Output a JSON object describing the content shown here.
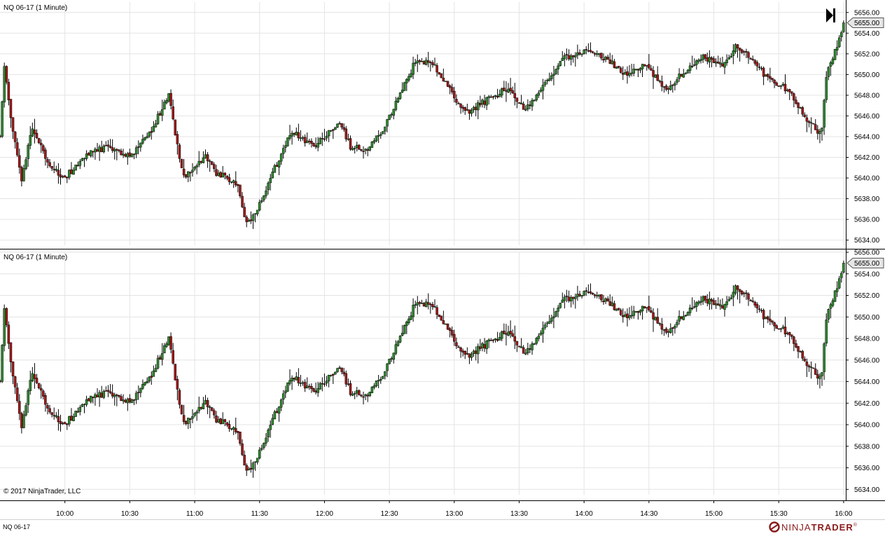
{
  "instrument_tab": "NQ 06-17",
  "copyright": "© 2017 NinjaTrader, LLC",
  "brand": {
    "logo_text_light": "NINJA",
    "logo_text_bold": "TRADER",
    "logo_mark": "®",
    "logo_color": "#8a1c1c"
  },
  "colors": {
    "up": "#2e8b2e",
    "down": "#a01818",
    "wick": "#000000",
    "grid": "#e4e4e4",
    "price_marker_fill": "#e6e6e6"
  },
  "chart_data": [
    {
      "type": "candlestick",
      "title": "NQ 06-17 (1 Minute)",
      "symbol": "NQ 06-17",
      "interval": "1 Minute",
      "x_ticks": [
        "10:00",
        "10:30",
        "11:00",
        "11:30",
        "12:00",
        "12:30",
        "13:00",
        "13:30",
        "14:00",
        "14:30",
        "15:00",
        "15:30",
        "16:00"
      ],
      "x_range": [
        "09:30",
        "16:01"
      ],
      "y_ticks": [
        "5634.00",
        "5636.00",
        "5638.00",
        "5640.00",
        "5642.00",
        "5644.00",
        "5646.00",
        "5648.00",
        "5650.00",
        "5652.00",
        "5654.00",
        "5656.00"
      ],
      "ylim": [
        5633.5,
        5657.0
      ],
      "last_price": "5655.00",
      "last_price_value": 5655.0,
      "grid": true,
      "end_of_chart_marker": true,
      "close_path": [
        [
          "09:30",
          5644.0
        ],
        [
          "09:32",
          5650.5
        ],
        [
          "09:35",
          5646.0
        ],
        [
          "09:40",
          5639.8
        ],
        [
          "09:45",
          5645.0
        ],
        [
          "09:52",
          5641.5
        ],
        [
          "10:00",
          5640.0
        ],
        [
          "10:10",
          5642.3
        ],
        [
          "10:20",
          5643.0
        ],
        [
          "10:30",
          5642.0
        ],
        [
          "10:40",
          5644.5
        ],
        [
          "10:48",
          5648.2
        ],
        [
          "10:52",
          5643.0
        ],
        [
          "10:55",
          5640.0
        ],
        [
          "11:05",
          5642.0
        ],
        [
          "11:10",
          5640.5
        ],
        [
          "11:20",
          5639.5
        ],
        [
          "11:24",
          5635.5
        ],
        [
          "11:28",
          5636.5
        ],
        [
          "11:35",
          5640.0
        ],
        [
          "11:45",
          5644.5
        ],
        [
          "11:55",
          5643.0
        ],
        [
          "12:07",
          5645.5
        ],
        [
          "12:12",
          5643.0
        ],
        [
          "12:20",
          5642.8
        ],
        [
          "12:28",
          5645.0
        ],
        [
          "12:35",
          5648.0
        ],
        [
          "12:42",
          5651.3
        ],
        [
          "12:50",
          5651.0
        ],
        [
          "12:55",
          5649.5
        ],
        [
          "13:05",
          5646.3
        ],
        [
          "13:15",
          5647.5
        ],
        [
          "13:25",
          5648.7
        ],
        [
          "13:33",
          5646.5
        ],
        [
          "13:40",
          5648.5
        ],
        [
          "13:50",
          5651.5
        ],
        [
          "14:02",
          5652.5
        ],
        [
          "14:10",
          5651.5
        ],
        [
          "14:20",
          5650.0
        ],
        [
          "14:28",
          5651.0
        ],
        [
          "14:38",
          5648.5
        ],
        [
          "14:45",
          5650.0
        ],
        [
          "14:55",
          5651.6
        ],
        [
          "15:05",
          5651.0
        ],
        [
          "15:10",
          5652.7
        ],
        [
          "15:18",
          5651.5
        ],
        [
          "15:25",
          5649.5
        ],
        [
          "15:35",
          5648.5
        ],
        [
          "15:42",
          5646.0
        ],
        [
          "15:48",
          5644.6
        ],
        [
          "15:50",
          5645.0
        ],
        [
          "15:52",
          5650.0
        ],
        [
          "15:58",
          5653.5
        ],
        [
          "16:00",
          5655.0
        ]
      ]
    },
    {
      "type": "candlestick",
      "title": "NQ 06-17 (1 Minute)",
      "symbol": "NQ 06-17",
      "interval": "1 Minute",
      "x_ticks": [
        "10:00",
        "10:30",
        "11:00",
        "11:30",
        "12:00",
        "12:30",
        "13:00",
        "13:30",
        "14:00",
        "14:30",
        "15:00",
        "15:30",
        "16:00"
      ],
      "x_range": [
        "09:30",
        "16:01"
      ],
      "y_ticks": [
        "5634.00",
        "5636.00",
        "5638.00",
        "5640.00",
        "5642.00",
        "5644.00",
        "5646.00",
        "5648.00",
        "5650.00",
        "5652.00",
        "5654.00",
        "5656.00"
      ],
      "ylim": [
        5633.5,
        5656.0
      ],
      "last_price": "5655.00",
      "last_price_value": 5655.0,
      "grid": true,
      "end_of_chart_marker": false,
      "close_path": [
        [
          "09:30",
          5644.0
        ],
        [
          "09:32",
          5650.5
        ],
        [
          "09:35",
          5646.0
        ],
        [
          "09:40",
          5639.8
        ],
        [
          "09:45",
          5645.0
        ],
        [
          "09:52",
          5641.5
        ],
        [
          "10:00",
          5640.0
        ],
        [
          "10:10",
          5642.3
        ],
        [
          "10:20",
          5643.0
        ],
        [
          "10:30",
          5642.0
        ],
        [
          "10:40",
          5644.5
        ],
        [
          "10:48",
          5648.2
        ],
        [
          "10:52",
          5643.0
        ],
        [
          "10:55",
          5640.0
        ],
        [
          "11:05",
          5642.0
        ],
        [
          "11:10",
          5640.5
        ],
        [
          "11:20",
          5639.5
        ],
        [
          "11:24",
          5635.5
        ],
        [
          "11:28",
          5636.5
        ],
        [
          "11:35",
          5640.0
        ],
        [
          "11:45",
          5644.5
        ],
        [
          "11:55",
          5643.0
        ],
        [
          "12:07",
          5645.5
        ],
        [
          "12:12",
          5643.0
        ],
        [
          "12:20",
          5642.8
        ],
        [
          "12:28",
          5645.0
        ],
        [
          "12:35",
          5648.0
        ],
        [
          "12:42",
          5651.3
        ],
        [
          "12:50",
          5651.0
        ],
        [
          "12:55",
          5649.5
        ],
        [
          "13:05",
          5646.3
        ],
        [
          "13:15",
          5647.5
        ],
        [
          "13:25",
          5648.7
        ],
        [
          "13:33",
          5646.5
        ],
        [
          "13:40",
          5648.5
        ],
        [
          "13:50",
          5651.5
        ],
        [
          "14:02",
          5652.5
        ],
        [
          "14:10",
          5651.5
        ],
        [
          "14:20",
          5650.0
        ],
        [
          "14:28",
          5651.0
        ],
        [
          "14:38",
          5648.5
        ],
        [
          "14:45",
          5650.0
        ],
        [
          "14:55",
          5651.6
        ],
        [
          "15:05",
          5651.0
        ],
        [
          "15:10",
          5652.7
        ],
        [
          "15:18",
          5651.5
        ],
        [
          "15:25",
          5649.5
        ],
        [
          "15:35",
          5648.5
        ],
        [
          "15:42",
          5646.0
        ],
        [
          "15:48",
          5644.6
        ],
        [
          "15:50",
          5645.0
        ],
        [
          "15:52",
          5650.0
        ],
        [
          "15:58",
          5653.5
        ],
        [
          "16:00",
          5655.0
        ]
      ]
    }
  ]
}
